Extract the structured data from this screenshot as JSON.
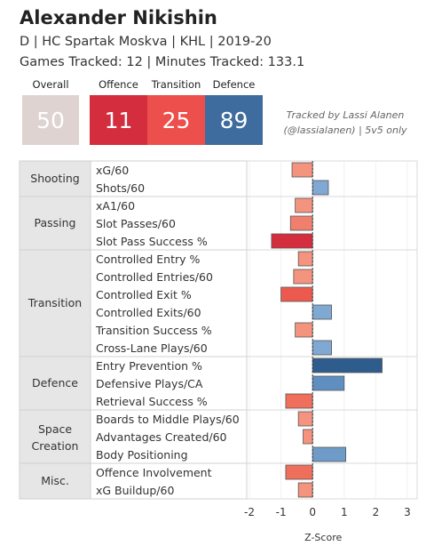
{
  "header": {
    "player_name": "Alexander Nikishin",
    "subtitle": "D | HC Spartak Moskva | KHL | 2019-20",
    "tracked": "Games Tracked: 12 | Minutes Tracked: 133.1"
  },
  "ratings": {
    "overall": {
      "label": "Overall",
      "value": "50",
      "color": "#dfd3d1"
    },
    "offence": {
      "label": "Offence",
      "value": "11",
      "color": "#d42d3d"
    },
    "transition": {
      "label": "Transition",
      "value": "25",
      "color": "#ec4f4c"
    },
    "defence": {
      "label": "Defence",
      "value": "89",
      "color": "#3f6c9e"
    }
  },
  "credit": {
    "line1": "Tracked by Lassi Alanen",
    "line2": "(@lassialanen) | 5v5 only"
  },
  "chart_data": {
    "type": "bar",
    "orientation": "horizontal",
    "xlabel": "Z-Score",
    "xlim": [
      -2,
      3
    ],
    "xticks": [
      "-2",
      "-1",
      "0",
      "1",
      "2",
      "3"
    ],
    "groups": [
      {
        "name": "Shooting",
        "metrics": [
          {
            "label": "xG/60",
            "value": -0.65,
            "color": "#f4937e"
          },
          {
            "label": "Shots/60",
            "value": 0.5,
            "color": "#7fa8d3"
          }
        ]
      },
      {
        "name": "Passing",
        "metrics": [
          {
            "label": "xA1/60",
            "value": -0.55,
            "color": "#f4937e"
          },
          {
            "label": "Slot Passes/60",
            "value": -0.7,
            "color": "#f0806d"
          },
          {
            "label": "Slot Pass Success %",
            "value": -1.3,
            "color": "#d42d3d"
          }
        ]
      },
      {
        "name": "Transition",
        "metrics": [
          {
            "label": "Controlled Entry %",
            "value": -0.45,
            "color": "#f4937e"
          },
          {
            "label": "Controlled Entries/60",
            "value": -0.6,
            "color": "#f4937e"
          },
          {
            "label": "Controlled Exit %",
            "value": -1.0,
            "color": "#ec5a4f"
          },
          {
            "label": "Controlled Exits/60",
            "value": 0.6,
            "color": "#7fa8d3"
          },
          {
            "label": "Transition Success %",
            "value": -0.55,
            "color": "#f4937e"
          },
          {
            "label": "Cross-Lane Plays/60",
            "value": 0.6,
            "color": "#7fa8d3"
          }
        ]
      },
      {
        "name": "Defence",
        "metrics": [
          {
            "label": "Entry Prevention %",
            "value": 2.2,
            "color": "#2e5c8c"
          },
          {
            "label": "Defensive Plays/CA",
            "value": 1.0,
            "color": "#5f8fc0"
          },
          {
            "label": "Retrieval Success %",
            "value": -0.85,
            "color": "#ef6f5c"
          }
        ]
      },
      {
        "name": "Space Creation",
        "name_lines": [
          "Space",
          "Creation"
        ],
        "metrics": [
          {
            "label": "Boards to Middle Plays/60",
            "value": -0.45,
            "color": "#f4937e"
          },
          {
            "label": "Advantages Created/60",
            "value": -0.3,
            "color": "#f4937e"
          },
          {
            "label": "Body Positioning",
            "value": 1.05,
            "color": "#6f9bc9"
          }
        ]
      },
      {
        "name": "Misc.",
        "metrics": [
          {
            "label": "Offence Involvement",
            "value": -0.85,
            "color": "#ef6f5c"
          },
          {
            "label": "xG Buildup/60",
            "value": -0.45,
            "color": "#f4937e"
          }
        ]
      }
    ]
  }
}
